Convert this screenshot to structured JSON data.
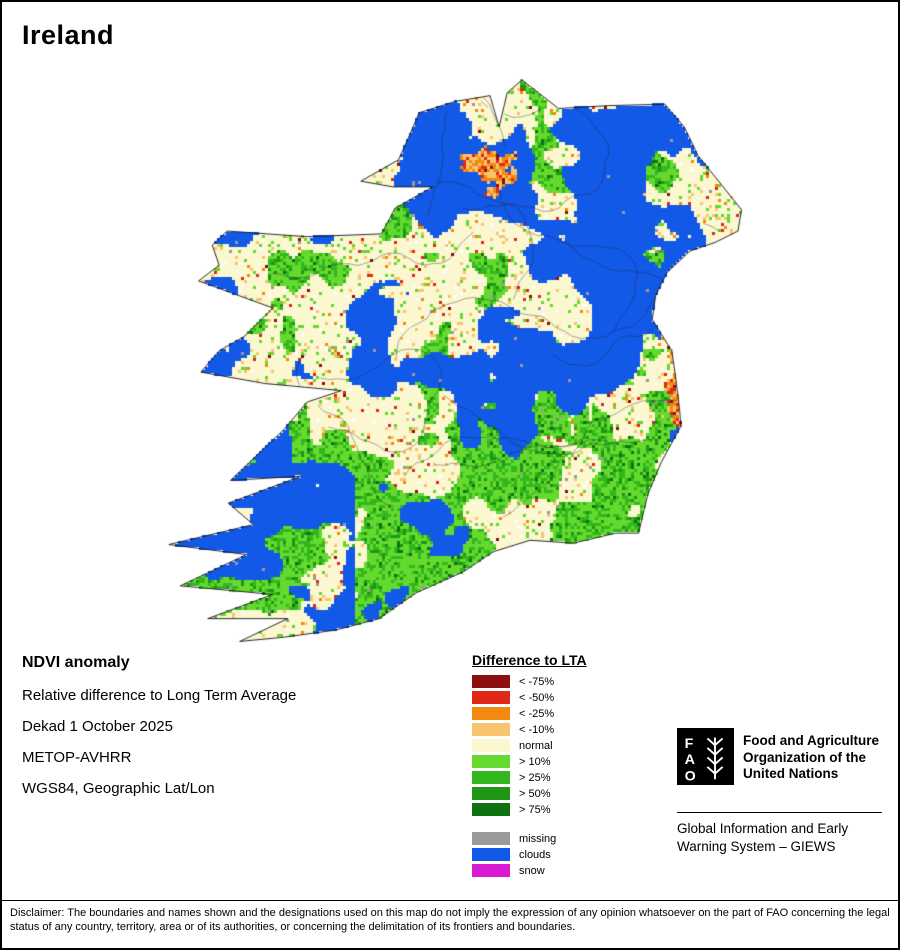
{
  "title": "Ireland",
  "info_block": {
    "heading": "NDVI anomaly",
    "lines": [
      "Relative difference to Long Term Average",
      "Dekad 1 October 2025",
      "METOP-AVHRR",
      "WGS84, Geographic Lat/Lon"
    ]
  },
  "legend": {
    "title": "Difference to LTA",
    "classes": [
      {
        "label": "< -75%",
        "color": "#8e0f0e"
      },
      {
        "label": "< -50%",
        "color": "#e02817"
      },
      {
        "label": "< -25%",
        "color": "#f28a0f"
      },
      {
        "label": "< -10%",
        "color": "#f8c46f"
      },
      {
        "label": "normal",
        "color": "#fbf7d0"
      },
      {
        "label": "> 10%",
        "color": "#65d92e"
      },
      {
        "label": "> 25%",
        "color": "#32b81e"
      },
      {
        "label": "> 50%",
        "color": "#1f9614"
      },
      {
        "label": "> 75%",
        "color": "#0f7210"
      }
    ],
    "extra": [
      {
        "label": "missing",
        "color": "#9a9a9a"
      },
      {
        "label": "clouds",
        "color": "#1259e8"
      },
      {
        "label": "snow",
        "color": "#da1ad0"
      }
    ]
  },
  "org": {
    "logo_letters": [
      "F",
      "A",
      "O"
    ],
    "name_lines": [
      "Food and Agriculture",
      "Organization of the",
      "United Nations"
    ],
    "subtitle_lines": [
      "Global Information and Early",
      "Warning System – GIEWS"
    ]
  },
  "disclaimer": "Disclaimer: The boundaries and names shown and the designations used on this map do not imply the expression of any opinion whatsoever on the part of FAO concerning the legal status of any country, territory, area or of its authorities, or concerning the delimitation of its frontiers and boundaries.",
  "map": {
    "projection_label": "WGS84, Geographic Lat/Lon",
    "lon_range": [
      -10.8,
      -5.2
    ],
    "lat_range": [
      51.38,
      55.45
    ],
    "outline": [
      [
        -7.37,
        55.38
      ],
      [
        -7.05,
        55.18
      ],
      [
        -6.62,
        55.2
      ],
      [
        -6.12,
        55.21
      ],
      [
        -5.95,
        55.05
      ],
      [
        -5.83,
        54.85
      ],
      [
        -5.7,
        54.72
      ],
      [
        -5.45,
        54.47
      ],
      [
        -5.48,
        54.32
      ],
      [
        -5.68,
        54.24
      ],
      [
        -5.9,
        54.18
      ],
      [
        -6.1,
        54.03
      ],
      [
        -6.2,
        53.87
      ],
      [
        -6.23,
        53.7
      ],
      [
        -6.06,
        53.48
      ],
      [
        -6.03,
        53.32
      ],
      [
        -5.99,
        53.06
      ],
      [
        -5.98,
        52.95
      ],
      [
        -6.15,
        52.7
      ],
      [
        -6.27,
        52.47
      ],
      [
        -6.35,
        52.2
      ],
      [
        -6.55,
        52.2
      ],
      [
        -6.92,
        52.13
      ],
      [
        -7.3,
        52.15
      ],
      [
        -7.62,
        52.07
      ],
      [
        -7.88,
        51.93
      ],
      [
        -8.3,
        51.78
      ],
      [
        -8.62,
        51.6
      ],
      [
        -9.0,
        51.52
      ],
      [
        -9.45,
        51.47
      ],
      [
        -9.84,
        51.44
      ],
      [
        -9.42,
        51.6
      ],
      [
        -10.12,
        51.6
      ],
      [
        -9.55,
        51.77
      ],
      [
        -10.36,
        51.83
      ],
      [
        -9.78,
        52.05
      ],
      [
        -10.46,
        52.12
      ],
      [
        -9.72,
        52.26
      ],
      [
        -9.94,
        52.41
      ],
      [
        -9.3,
        52.6
      ],
      [
        -9.92,
        52.57
      ],
      [
        -9.45,
        52.93
      ],
      [
        -9.25,
        53.12
      ],
      [
        -8.95,
        53.2
      ],
      [
        -9.62,
        53.25
      ],
      [
        -10.18,
        53.33
      ],
      [
        -10.02,
        53.48
      ],
      [
        -9.8,
        53.58
      ],
      [
        -9.55,
        53.78
      ],
      [
        -10.2,
        53.97
      ],
      [
        -10.02,
        54.08
      ],
      [
        -10.08,
        54.22
      ],
      [
        -9.95,
        54.32
      ],
      [
        -9.25,
        54.28
      ],
      [
        -8.6,
        54.3
      ],
      [
        -8.48,
        54.48
      ],
      [
        -8.15,
        54.63
      ],
      [
        -8.5,
        54.63
      ],
      [
        -8.78,
        54.67
      ],
      [
        -8.45,
        54.82
      ],
      [
        -8.35,
        55.0
      ],
      [
        -8.27,
        55.15
      ],
      [
        -7.95,
        55.23
      ],
      [
        -7.65,
        55.27
      ],
      [
        -7.57,
        55.05
      ],
      [
        -7.5,
        55.29
      ]
    ]
  }
}
